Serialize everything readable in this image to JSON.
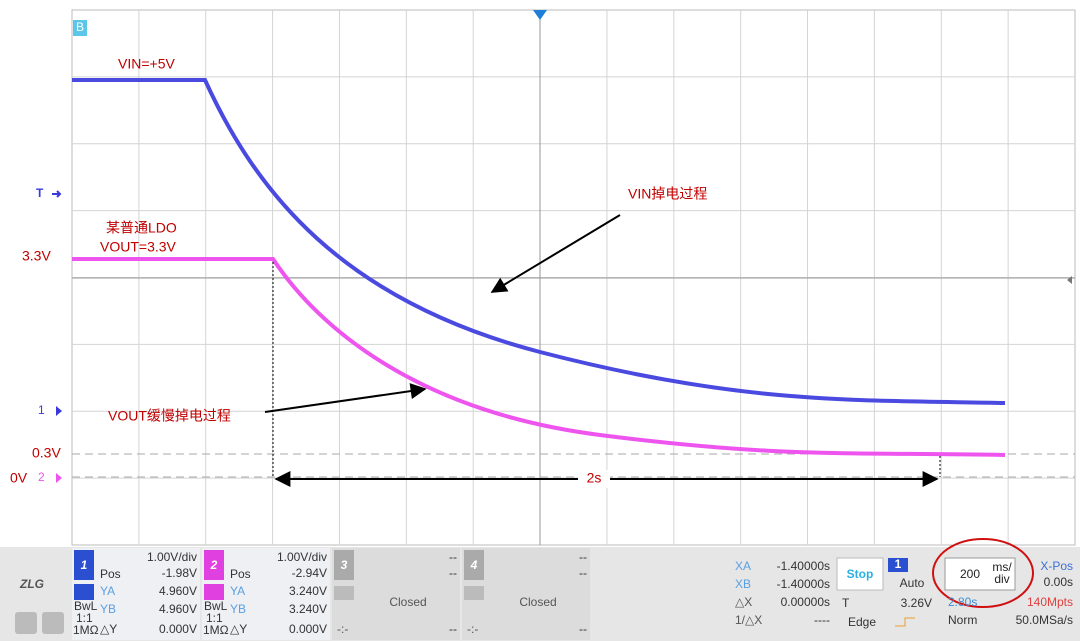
{
  "plot": {
    "marker": "B",
    "vin_level": "VIN=+5V",
    "ldo_name": "某普通LDO",
    "vout_level": "VOUT=3.3V",
    "vin_note": "VIN掉电过程",
    "vout_note": "VOUT缓慢掉电过程",
    "span": "2s",
    "trigger_mark": "T",
    "ch1_mark": "1",
    "ch2_mark": "2",
    "level_33": "3.3V",
    "level_03": "0.3V",
    "level_0": "0V"
  },
  "logo": "ZLG",
  "channels": [
    {
      "number": "1",
      "scale": "1.00V/div",
      "pos_label": "Pos",
      "pos": "-1.98V",
      "ya_label": "YA",
      "ya": "4.960V",
      "yb_label": "YB",
      "yb": "4.960V",
      "bandwidth": "BwL",
      "probe": "1:1",
      "impedance": "1MΩ",
      "dy_label": "△Y",
      "dy": "0.000V"
    },
    {
      "number": "2",
      "scale": "1.00V/div",
      "pos_label": "Pos",
      "pos": "-2.94V",
      "ya_label": "YA",
      "ya": "3.240V",
      "yb_label": "YB",
      "yb": "3.240V",
      "bandwidth": "BwL",
      "probe": "1:1",
      "impedance": "1MΩ",
      "dy_label": "△Y",
      "dy": "0.000V"
    },
    {
      "number": "3",
      "scale": "--",
      "pos": "--",
      "state": "Closed",
      "foot_label": "-:-",
      "foot": "--"
    },
    {
      "number": "4",
      "scale": "--",
      "pos": "--",
      "state": "Closed",
      "foot_label": "-:-",
      "foot": "--"
    }
  ],
  "cursors": {
    "xa_label": "XA",
    "xa": "-1.40000s",
    "xb_label": "XB",
    "xb": "-1.40000s",
    "dx_label": "△X",
    "dx": "0.00000s",
    "inv_label": "1/△X",
    "inv": "----"
  },
  "trigger": {
    "run_state": "Stop",
    "source": "1",
    "mode": "Auto",
    "level_label": "T",
    "level": "3.26V",
    "type": "Edge"
  },
  "timebase": {
    "scale": "200",
    "unit_top": "ms/",
    "unit_bottom": "div",
    "xpos_label": "X-Pos",
    "xpos": "0.00s",
    "window": "2.80s",
    "depth": "140Mpts",
    "acq": "Norm",
    "rate": "50.0MSa/s"
  }
}
